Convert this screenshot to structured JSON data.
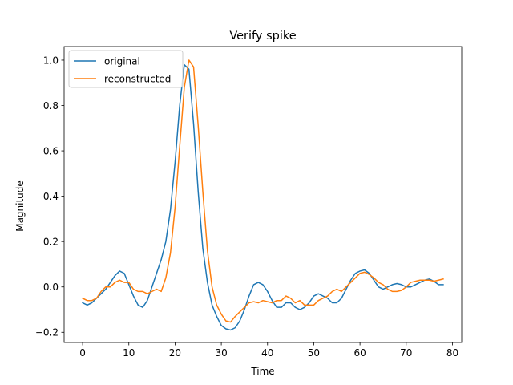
{
  "chart_data": {
    "type": "line",
    "title": "Verify spike",
    "xlabel": "Time",
    "ylabel": "Magnitude",
    "xlim": [
      -4,
      82
    ],
    "ylim": [
      -0.245,
      1.06
    ],
    "xticks": [
      0,
      10,
      20,
      30,
      40,
      50,
      60,
      70,
      80
    ],
    "yticks": [
      -0.2,
      0.0,
      0.2,
      0.4,
      0.6,
      0.8,
      1.0
    ],
    "xtick_labels": [
      "0",
      "10",
      "20",
      "30",
      "40",
      "50",
      "60",
      "70",
      "80"
    ],
    "ytick_labels": [
      "−0.2",
      "0.0",
      "0.2",
      "0.4",
      "0.6",
      "0.8",
      "1.0"
    ],
    "grid": false,
    "legend_position": "top-left",
    "series": [
      {
        "name": "original",
        "color": "#1f77b4",
        "values": [
          -0.07,
          -0.08,
          -0.07,
          -0.05,
          -0.03,
          -0.01,
          0.02,
          0.05,
          0.07,
          0.06,
          0.01,
          -0.04,
          -0.08,
          -0.09,
          -0.06,
          0.0,
          0.06,
          0.12,
          0.2,
          0.34,
          0.55,
          0.8,
          0.98,
          0.96,
          0.72,
          0.42,
          0.17,
          0.02,
          -0.08,
          -0.13,
          -0.17,
          -0.185,
          -0.19,
          -0.18,
          -0.15,
          -0.1,
          -0.04,
          0.01,
          0.02,
          0.01,
          -0.02,
          -0.06,
          -0.09,
          -0.09,
          -0.07,
          -0.07,
          -0.09,
          -0.1,
          -0.09,
          -0.07,
          -0.04,
          -0.03,
          -0.04,
          -0.05,
          -0.07,
          -0.07,
          -0.05,
          -0.01,
          0.03,
          0.06,
          0.07,
          0.075,
          0.06,
          0.03,
          0.0,
          -0.01,
          0.0,
          0.01,
          0.015,
          0.01,
          0.0,
          0.0,
          0.01,
          0.02,
          0.03,
          0.035,
          0.025,
          0.01,
          0.01
        ]
      },
      {
        "name": "reconstructed",
        "color": "#ff7f0e",
        "values": [
          -0.05,
          -0.06,
          -0.06,
          -0.05,
          -0.02,
          0.0,
          0.0,
          0.02,
          0.03,
          0.02,
          0.02,
          -0.01,
          -0.02,
          -0.02,
          -0.03,
          -0.02,
          -0.01,
          -0.02,
          0.04,
          0.15,
          0.35,
          0.62,
          0.88,
          1.0,
          0.97,
          0.71,
          0.42,
          0.16,
          0.0,
          -0.08,
          -0.12,
          -0.15,
          -0.155,
          -0.13,
          -0.11,
          -0.09,
          -0.07,
          -0.065,
          -0.07,
          -0.06,
          -0.065,
          -0.07,
          -0.06,
          -0.06,
          -0.04,
          -0.05,
          -0.07,
          -0.06,
          -0.08,
          -0.08,
          -0.08,
          -0.06,
          -0.05,
          -0.04,
          -0.02,
          -0.01,
          -0.02,
          0.0,
          0.02,
          0.04,
          0.06,
          0.065,
          0.055,
          0.04,
          0.02,
          0.01,
          -0.01,
          -0.02,
          -0.02,
          -0.015,
          0.0,
          0.02,
          0.025,
          0.03,
          0.03,
          0.03,
          0.025,
          0.03,
          0.035
        ]
      }
    ]
  }
}
